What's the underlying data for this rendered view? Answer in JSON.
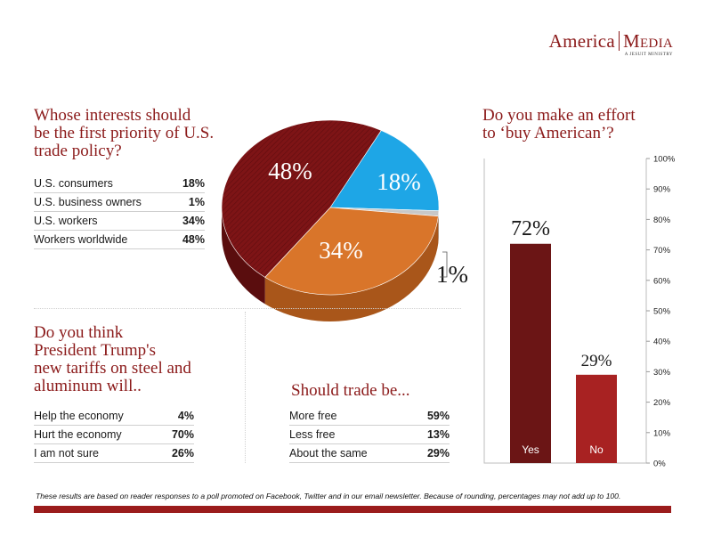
{
  "brand": {
    "name_left": "America",
    "name_right": "Media",
    "tagline": "A JESUIT MINISTRY"
  },
  "q1": {
    "title": "Whose interests should\nbe the first priority of U.S.\ntrade policy?",
    "rows": [
      {
        "label": "U.S. consumers",
        "value": "18%"
      },
      {
        "label": "U.S. business owners",
        "value": "1%"
      },
      {
        "label": "U.S. workers",
        "value": "34%"
      },
      {
        "label": "Workers worldwide",
        "value": "48%"
      }
    ]
  },
  "q2": {
    "title": "Do you think\nPresident Trump's\nnew tariffs on steel and\naluminum will..",
    "rows": [
      {
        "label": "Help the economy",
        "value": "4%"
      },
      {
        "label": "Hurt the economy",
        "value": "70%"
      },
      {
        "label": "I am not sure",
        "value": "26%"
      }
    ]
  },
  "q3": {
    "title": "Should trade be...",
    "rows": [
      {
        "label": "More free",
        "value": "59%"
      },
      {
        "label": "Less free",
        "value": "13%"
      },
      {
        "label": "About the same",
        "value": "29%"
      }
    ]
  },
  "q4": {
    "title": "Do you make an effort\nto ‘buy American’?"
  },
  "chart_data": [
    {
      "type": "pie",
      "labels": [
        "U.S. consumers",
        "U.S. business owners",
        "U.S. workers",
        "Workers worldwide"
      ],
      "values": [
        18,
        1,
        34,
        48
      ],
      "value_labels": [
        "18%",
        "1%",
        "34%",
        "48%"
      ],
      "colors": [
        "#1ea6e6",
        "#c8c8c8",
        "#d9752a",
        "#7e1416"
      ]
    },
    {
      "type": "bar",
      "categories": [
        "Yes",
        "No"
      ],
      "values": [
        72,
        29
      ],
      "value_labels": [
        "72%",
        "29%"
      ],
      "colors": [
        "#6b1515",
        "#a82222"
      ],
      "ylim": [
        0,
        100
      ],
      "yticks": [
        "0%",
        "10%",
        "20%",
        "30%",
        "40%",
        "50%",
        "60%",
        "70%",
        "80%",
        "90%",
        "100%"
      ],
      "grid": false
    }
  ],
  "footnote": "These results are based on reader responses to a poll promoted on Facebook, Twitter and in our email newsletter. Because of rounding, percentages may not add up to 100."
}
